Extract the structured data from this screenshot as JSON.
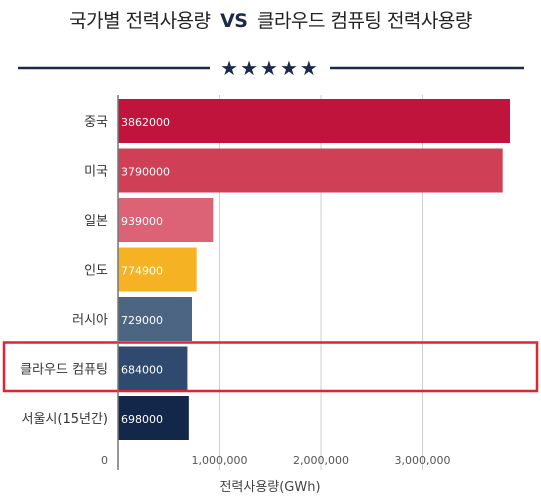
{
  "title": {
    "part1": "국가별 전력사용량",
    "vs": "VS",
    "part2": "클라우드 컴퓨팅 전력사용량"
  },
  "divider": {
    "stars": "★★★★★",
    "color": "#1b2a4a"
  },
  "highlight": {
    "category": "클라우드 컴퓨팅",
    "color": "#e0262c"
  },
  "chart_data": {
    "type": "bar",
    "orientation": "horizontal",
    "categories": [
      "중국",
      "미국",
      "일본",
      "인도",
      "러시아",
      "클라우드 컴퓨팅",
      "서울시(15년간)"
    ],
    "values": [
      3862000,
      3790000,
      939000,
      774900,
      729000,
      684000,
      698000
    ],
    "value_labels": [
      "3862000",
      "3790000",
      "939000",
      "774900",
      "729000",
      "684000",
      "698000"
    ],
    "colors": [
      "#c0143c",
      "#cf3f56",
      "#dc6275",
      "#f5b324",
      "#4c6582",
      "#2f4a6e",
      "#13274a"
    ],
    "xlabel": "전력사용량(GWh)",
    "ylabel": "",
    "xlim": [
      0,
      4000000
    ],
    "xticks": [
      0,
      1000000,
      2000000,
      3000000
    ],
    "xtick_labels": [
      "0",
      "1,000,000",
      "2,000,000",
      "3,000,000"
    ],
    "grid": true
  }
}
